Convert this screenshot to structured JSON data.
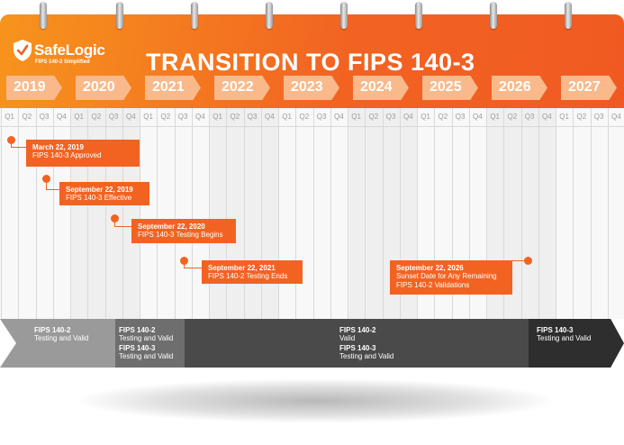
{
  "brand": {
    "name": "SafeLogic",
    "tagline": "FIPS 140-2 Simplified",
    "logo": "shield-check-icon"
  },
  "title": "TRANSITION TO FIPS 140-3",
  "years": [
    "2019",
    "2020",
    "2021",
    "2022",
    "2023",
    "2024",
    "2025",
    "2026",
    "2027"
  ],
  "quarters": [
    "Q1",
    "Q2",
    "Q3",
    "Q4"
  ],
  "milestones": [
    {
      "date": "March 22, 2019",
      "text": "FIPS 140-3 Approved"
    },
    {
      "date": "September 22, 2019",
      "text": "FIPS 140-3 Effective"
    },
    {
      "date": "September 22, 2020",
      "text": "FIPS 140-3 Testing Begins"
    },
    {
      "date": "September 22, 2021",
      "text": "FIPS 140-2 Testing Ends"
    },
    {
      "date": "September 22, 2026",
      "text": "Sunset Date for Any Remaining FIPS 140-2 Validations"
    }
  ],
  "phases": [
    {
      "lines": [
        {
          "label": "FIPS 140-2",
          "status": "Testing and Valid"
        }
      ]
    },
    {
      "lines": [
        {
          "label": "FIPS 140-2",
          "status": "Testing and Valid"
        },
        {
          "label": "FIPS 140-3",
          "status": "Testing and Valid"
        }
      ]
    },
    {
      "lines": [
        {
          "label": "FIPS 140-2",
          "status": "Valid"
        },
        {
          "label": "FIPS 140-3",
          "status": "Testing and Valid"
        }
      ]
    },
    {
      "lines": [
        {
          "label": "FIPS 140-3",
          "status": "Testing and Valid"
        }
      ]
    }
  ],
  "colors": {
    "orange": "#f26322",
    "light_orange": "#f9b98b",
    "phase1": "#9a9a9a",
    "phase2": "#6e6e6e",
    "phase3": "#4a4a4a",
    "phase4": "#2e2e2e"
  }
}
